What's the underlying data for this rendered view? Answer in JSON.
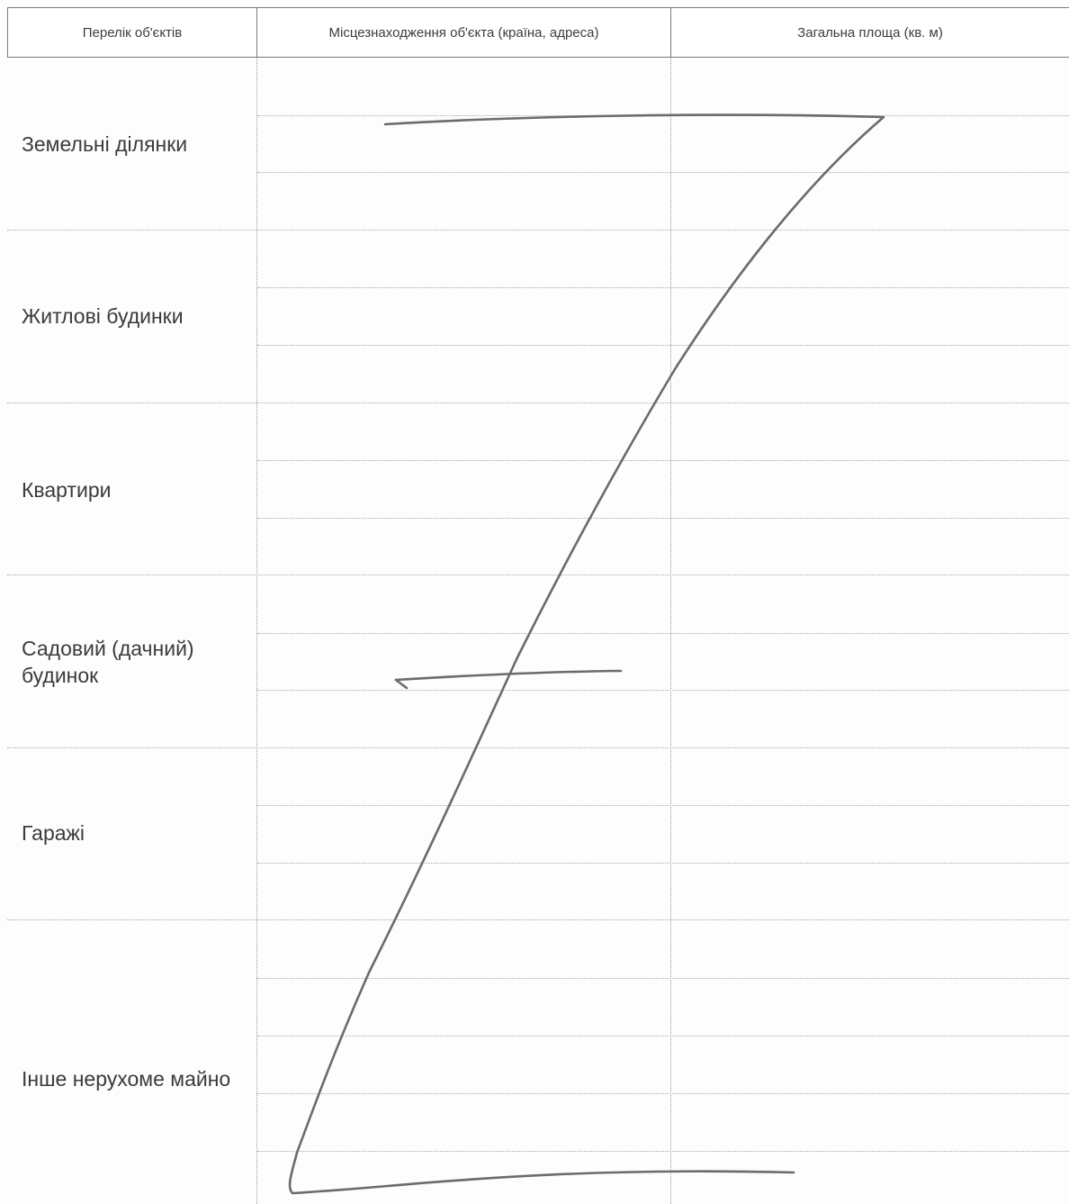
{
  "table": {
    "headers": [
      "Перелік об'єктів",
      "Місцезнаходження об'єкта (країна, адреса)",
      "Загальна площа (кв. м)"
    ],
    "rows": [
      "Земельні ділянки",
      "Житлові будинки",
      "Квартири",
      "Садовий (дачний) будинок",
      "Гаражі",
      "Інше нерухоме майно"
    ]
  }
}
